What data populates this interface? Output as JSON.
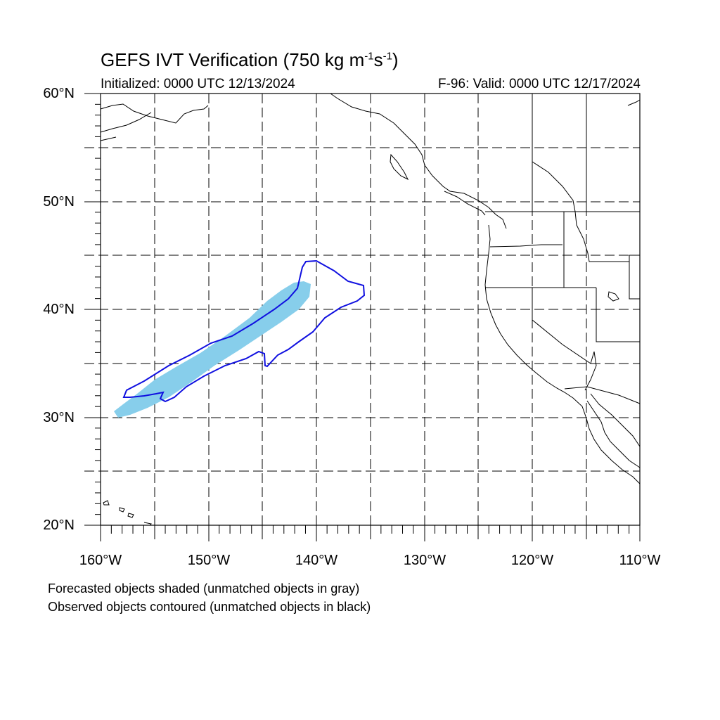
{
  "title": {
    "main": "GEFS IVT Verification (750 kg m",
    "sup1": "-1",
    "mid": "s",
    "sup2": "-1",
    "end": ")"
  },
  "initialized": "Initialized: 0000 UTC 12/13/2024",
  "valid": "F-96: Valid: 0000 UTC 12/17/2024",
  "lat_labels": [
    "60°N",
    "50°N",
    "40°N",
    "30°N",
    "20°N"
  ],
  "lon_labels": [
    "160°W",
    "150°W",
    "140°W",
    "130°W",
    "120°W",
    "110°W"
  ],
  "notes": [
    "Forecasted objects shaded (unmatched objects in gray)",
    "Observed objects contoured (unmatched objects in black)"
  ],
  "map": {
    "lon_range": [
      -160,
      -110
    ],
    "lat_range": [
      20,
      60
    ],
    "grid_interval_deg": 5,
    "forecast_object_color": "#87ceeb",
    "observed_contour_color": "#1010e0"
  }
}
